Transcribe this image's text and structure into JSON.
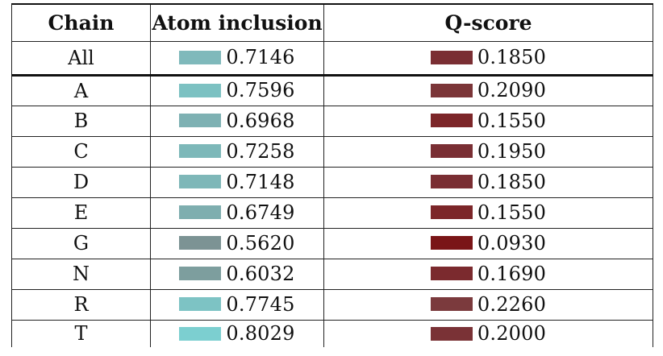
{
  "table": {
    "headers": {
      "chain": "Chain",
      "atom_inclusion": "Atom inclusion",
      "q_score": "Q-score"
    },
    "rows": [
      {
        "chain": "All",
        "atom_inclusion": "0.7146",
        "q_score": "0.1850",
        "ai_color": "#7fb9bb",
        "q_color": "#7a2e33"
      },
      {
        "chain": "A",
        "atom_inclusion": "0.7596",
        "q_score": "0.2090",
        "ai_color": "#7cc1c2",
        "q_color": "#7b3538"
      },
      {
        "chain": "B",
        "atom_inclusion": "0.6968",
        "q_score": "0.1550",
        "ai_color": "#7eb1b3",
        "q_color": "#7c2629"
      },
      {
        "chain": "C",
        "atom_inclusion": "0.7258",
        "q_score": "0.1950",
        "ai_color": "#7db8b9",
        "q_color": "#7a2f34"
      },
      {
        "chain": "D",
        "atom_inclusion": "0.7148",
        "q_score": "0.1850",
        "ai_color": "#7eb7b8",
        "q_color": "#7a2e33"
      },
      {
        "chain": "E",
        "atom_inclusion": "0.6749",
        "q_score": "0.1550",
        "ai_color": "#7eaeaf",
        "q_color": "#7c2629"
      },
      {
        "chain": "G",
        "atom_inclusion": "0.5620",
        "q_score": "0.0930",
        "ai_color": "#7c9394",
        "q_color": "#7a1517"
      },
      {
        "chain": "N",
        "atom_inclusion": "0.6032",
        "q_score": "0.1690",
        "ai_color": "#7d9e9e",
        "q_color": "#7b2a2e"
      },
      {
        "chain": "R",
        "atom_inclusion": "0.7745",
        "q_score": "0.2260",
        "ai_color": "#7dc3c4",
        "q_color": "#7b3a3d"
      },
      {
        "chain": "T",
        "atom_inclusion": "0.8029",
        "q_score": "0.2000",
        "ai_color": "#7ccfd0",
        "q_color": "#7a3236"
      }
    ]
  }
}
